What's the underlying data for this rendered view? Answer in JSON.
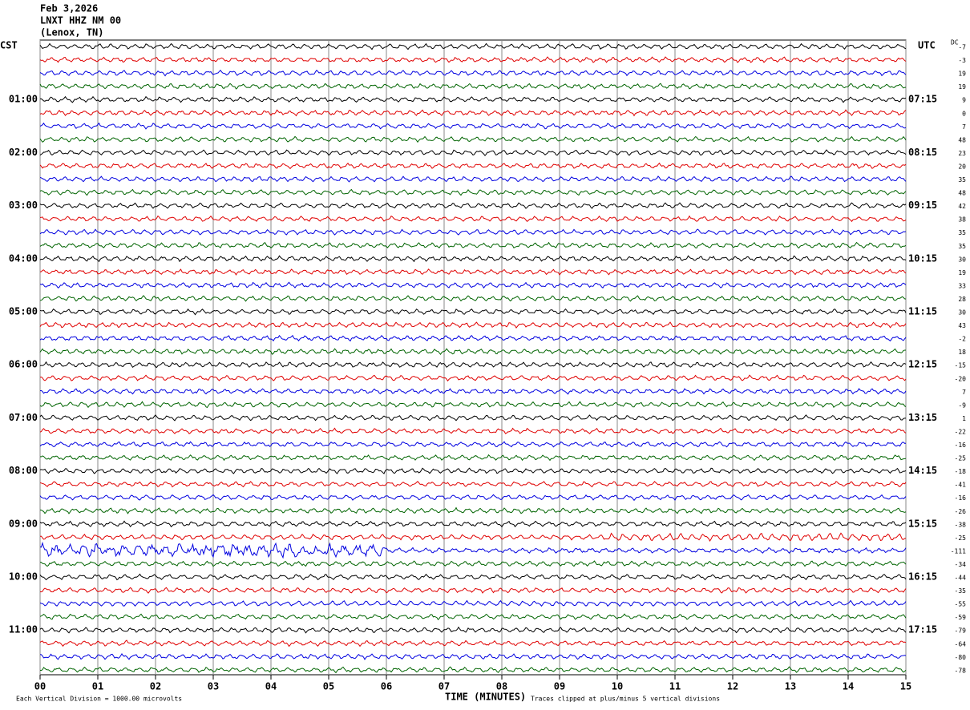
{
  "chart_data": {
    "type": "helicorder",
    "title_lines": [
      "Feb 3,2026",
      "LNXT HHZ NM 00",
      "(Lenox, TN)"
    ],
    "left_axis_label": "CST",
    "right_axis_label": "UTC",
    "dc_label": "DC",
    "left_labels": [
      "01:00",
      "02:00",
      "03:00",
      "04:00",
      "05:00",
      "06:00",
      "07:00",
      "08:00",
      "09:00",
      "10:00",
      "11:00"
    ],
    "right_labels": [
      "07:15",
      "08:15",
      "09:15",
      "10:15",
      "11:15",
      "12:15",
      "13:15",
      "14:15",
      "15:15",
      "16:15",
      "17:15"
    ],
    "dc_offsets": [
      -7,
      -3,
      19,
      19,
      9,
      0,
      7,
      48,
      23,
      20,
      35,
      48,
      42,
      38,
      35,
      35,
      30,
      19,
      33,
      28,
      30,
      43,
      -2,
      18,
      -15,
      -20,
      7,
      -9,
      1,
      -22,
      -16,
      -25,
      -18,
      -41,
      -16,
      -26,
      -38,
      -25,
      -111,
      -34,
      -44,
      -35,
      -55,
      -59,
      -79,
      -64,
      -80,
      -78
    ],
    "trace_colors": [
      "#000000",
      "#e00000",
      "#0000e0",
      "#006400"
    ],
    "x_label": "TIME (MINUTES)",
    "xlim": [
      0,
      15
    ],
    "xticks": [
      {
        "value": 0,
        "label": "00"
      },
      {
        "value": 1,
        "label": "01"
      },
      {
        "value": 2,
        "label": "02"
      },
      {
        "value": 3,
        "label": "03"
      },
      {
        "value": 4,
        "label": "04"
      },
      {
        "value": 5,
        "label": "05"
      },
      {
        "value": 6,
        "label": "06"
      },
      {
        "value": 7,
        "label": "07"
      },
      {
        "value": 8,
        "label": "08"
      },
      {
        "value": 9,
        "label": "09"
      },
      10,
      11,
      12,
      13,
      14,
      15
    ],
    "footer_left": "Each Vertical Division = 1000.00 microvolts",
    "footer_right": "Traces clipped at plus/minus 5 vertical divisions"
  }
}
